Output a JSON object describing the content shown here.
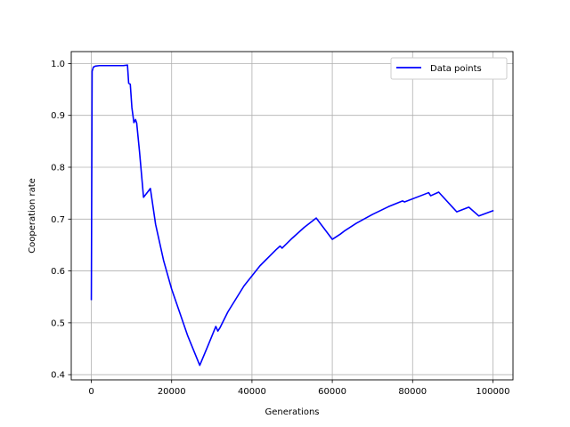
{
  "chart_data": {
    "type": "line",
    "title": "",
    "xlabel": "Generations",
    "ylabel": "Cooperation rate",
    "xlim": [
      -5000,
      105000
    ],
    "ylim": [
      0.39,
      1.023
    ],
    "xticks": [
      0,
      20000,
      40000,
      60000,
      80000,
      100000
    ],
    "xtick_labels": [
      "0",
      "20000",
      "40000",
      "60000",
      "80000",
      "100000"
    ],
    "yticks": [
      0.4,
      0.5,
      0.6,
      0.7,
      0.8,
      0.9,
      1.0
    ],
    "ytick_labels": [
      "0.4",
      "0.5",
      "0.6",
      "0.7",
      "0.8",
      "0.9",
      "1.0"
    ],
    "grid": true,
    "legend_position": "top-right",
    "series": [
      {
        "name": "Data points",
        "color": "#0000ff",
        "x": [
          0,
          200,
          500,
          1000,
          2000,
          4000,
          6000,
          8000,
          9000,
          9300,
          9700,
          10100,
          10600,
          11000,
          11300,
          12000,
          13000,
          14000,
          14700,
          16000,
          18000,
          20000,
          22000,
          24000,
          27000,
          29000,
          31000,
          31500,
          32000,
          34000,
          38000,
          42000,
          46000,
          47000,
          47500,
          50000,
          53000,
          56000,
          60000,
          62000,
          63000,
          66000,
          70000,
          74000,
          77500,
          78000,
          82000,
          84000,
          84500,
          86500,
          91000,
          94000,
          96500,
          100000
        ],
        "y": [
          0.545,
          0.985,
          0.993,
          0.995,
          0.996,
          0.996,
          0.996,
          0.996,
          0.997,
          0.962,
          0.96,
          0.915,
          0.886,
          0.892,
          0.885,
          0.83,
          0.742,
          0.752,
          0.759,
          0.69,
          0.62,
          0.565,
          0.52,
          0.475,
          0.418,
          0.455,
          0.493,
          0.484,
          0.49,
          0.521,
          0.571,
          0.61,
          0.641,
          0.648,
          0.644,
          0.663,
          0.684,
          0.702,
          0.661,
          0.671,
          0.677,
          0.692,
          0.709,
          0.724,
          0.735,
          0.733,
          0.745,
          0.751,
          0.745,
          0.752,
          0.714,
          0.723,
          0.706,
          0.716
        ]
      }
    ]
  }
}
